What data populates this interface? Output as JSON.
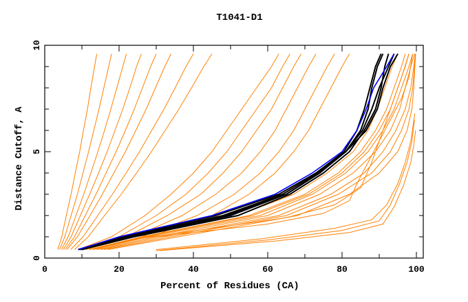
{
  "chart_data": {
    "type": "line",
    "title": "T1041-D1",
    "xlabel": "Percent of Residues (CA)",
    "ylabel": "Distance Cutoff, A",
    "xlim": [
      0,
      100
    ],
    "ylim": [
      0,
      10
    ],
    "x_ticks": [
      0,
      20,
      40,
      60,
      80,
      100
    ],
    "y_ticks": [
      0,
      5,
      10
    ],
    "grid": false,
    "legend": "none",
    "colors": {
      "other_models": "#ff8000",
      "highlight_black": "#000000",
      "highlight_blue": "#0000ff"
    },
    "y_levels": [
      0.4,
      1,
      2,
      3,
      4,
      5,
      6,
      7,
      8,
      9,
      9.6
    ],
    "series": [
      {
        "color": "#ff8000",
        "x": [
          3.5,
          4.6,
          5.8,
          7.1,
          8.2,
          9.4,
          10.4,
          11.5,
          12.4,
          13.4,
          14
        ]
      },
      {
        "color": "#ff8000",
        "x": [
          4,
          5.4,
          7.1,
          8.8,
          10.3,
          11.8,
          13.2,
          14.6,
          15.9,
          17.2,
          18
        ]
      },
      {
        "color": "#ff8000",
        "x": [
          4.5,
          6.3,
          8.4,
          10.5,
          12.4,
          14.3,
          16.1,
          17.8,
          19.4,
          21,
          22
        ]
      },
      {
        "color": "#ff8000",
        "x": [
          5,
          7.1,
          9.6,
          12.1,
          14.5,
          16.8,
          18.9,
          21,
          22.9,
          24.7,
          26
        ]
      },
      {
        "color": "#ff8000",
        "x": [
          5.5,
          8,
          10.9,
          13.8,
          16.5,
          19.2,
          21.7,
          24.1,
          26.3,
          28.5,
          30
        ]
      },
      {
        "color": "#ff8000",
        "x": [
          6,
          8.8,
          12.2,
          15.5,
          18.6,
          21.7,
          24.5,
          27.3,
          29.8,
          32.3,
          34
        ]
      },
      {
        "color": "#ff8000",
        "x": [
          7,
          10.3,
          14.3,
          18.2,
          21.9,
          25.5,
          28.8,
          32.1,
          35.1,
          38,
          40
        ]
      },
      {
        "color": "#ff8000",
        "x": [
          8,
          11.7,
          16.1,
          20.6,
          24.7,
          28.7,
          32.4,
          36.1,
          39.5,
          42.8,
          45
        ]
      },
      {
        "color": "#ff8000",
        "x": [
          10,
          22,
          33,
          42,
          48,
          53,
          57,
          61,
          64,
          67,
          69
        ]
      },
      {
        "color": "#ff8000",
        "x": [
          11,
          24,
          37,
          46,
          53,
          58,
          62,
          65,
          68,
          71,
          73
        ]
      },
      {
        "color": "#ff8000",
        "x": [
          12,
          26,
          41,
          51,
          58,
          63,
          67,
          70,
          73,
          76,
          78
        ]
      },
      {
        "color": "#ff8000",
        "x": [
          10,
          20,
          30,
          38,
          44,
          49,
          53,
          57,
          61,
          64,
          66
        ]
      },
      {
        "color": "#ff8000",
        "x": [
          12,
          28,
          45,
          55,
          62,
          67,
          71,
          74,
          77,
          80,
          82
        ]
      },
      {
        "color": "#ff8000",
        "x": [
          9,
          18,
          27,
          34,
          40,
          45,
          49,
          53,
          57,
          61,
          63
        ]
      },
      {
        "color": "#ff8000",
        "x": [
          11,
          24,
          52,
          67,
          76,
          83,
          87,
          89.5,
          91.5,
          93.5,
          95
        ]
      },
      {
        "color": "#ff8000",
        "x": [
          12,
          26,
          55,
          70,
          79,
          85,
          89,
          92,
          94,
          96,
          97
        ]
      },
      {
        "color": "#ff8000",
        "x": [
          13,
          28,
          58,
          72,
          81,
          87,
          91,
          94,
          96,
          98,
          99
        ]
      },
      {
        "color": "#ff8000",
        "x": [
          14,
          30,
          60,
          74,
          83,
          89,
          93,
          95.5,
          97,
          98.5,
          99.5
        ]
      },
      {
        "color": "#ff8000",
        "x": [
          15,
          32,
          63,
          77,
          86,
          91,
          94.5,
          97,
          98.5,
          99.3,
          99.7
        ]
      },
      {
        "color": "#ff8000",
        "x": [
          12,
          27,
          56,
          71,
          80,
          86,
          90,
          93,
          95,
          97,
          98
        ]
      },
      {
        "color": "#ff8000",
        "x": [
          16,
          34,
          65,
          79,
          88,
          93,
          96,
          98,
          99,
          99.5,
          99.8
        ]
      },
      {
        "color": "#ff8000",
        "x": [
          17,
          36,
          68,
          82,
          90,
          95,
          97.5,
          98.8,
          99.3,
          99.6,
          99.8
        ]
      },
      {
        "color": "#ff8000",
        "points": [
          [
            14,
            0.4
          ],
          [
            30,
            1
          ],
          [
            60,
            1.6
          ],
          [
            75,
            2.1
          ],
          [
            82,
            2.7
          ],
          [
            84,
            3.5
          ],
          [
            87,
            4.5
          ],
          [
            90,
            5.5
          ],
          [
            93,
            6.5
          ],
          [
            96,
            7.5
          ],
          [
            98,
            8.5
          ],
          [
            99,
            9.6
          ]
        ]
      },
      {
        "color": "#ff8000",
        "points": [
          [
            12,
            0.4
          ],
          [
            25,
            0.9
          ],
          [
            45,
            1.4
          ],
          [
            65,
            1.9
          ],
          [
            78,
            2.5
          ],
          [
            85,
            3.3
          ],
          [
            88,
            4.5
          ],
          [
            90,
            5.5
          ],
          [
            93,
            7
          ],
          [
            96,
            8.5
          ],
          [
            98,
            9.6
          ]
        ]
      },
      {
        "color": "#ff8000",
        "points": [
          [
            30,
            0.35
          ],
          [
            60,
            0.85
          ],
          [
            80,
            1.3
          ],
          [
            90,
            1.75
          ],
          [
            93,
            2.5
          ],
          [
            95.5,
            3.5
          ],
          [
            97.5,
            4.5
          ],
          [
            98.8,
            5.5
          ],
          [
            99.5,
            6.5
          ]
        ]
      },
      {
        "color": "#ff8000",
        "points": [
          [
            31,
            0.35
          ],
          [
            62,
            0.8
          ],
          [
            82,
            1.2
          ],
          [
            91,
            1.6
          ],
          [
            94,
            2.4
          ],
          [
            96.5,
            3.4
          ],
          [
            98.5,
            4.5
          ],
          [
            99.3,
            5.3
          ],
          [
            99.8,
            6
          ]
        ]
      },
      {
        "color": "#ff8000",
        "points": [
          [
            30,
            0.4
          ],
          [
            58,
            0.9
          ],
          [
            78,
            1.4
          ],
          [
            88,
            1.8
          ],
          [
            92,
            2.5
          ],
          [
            95,
            3.5
          ],
          [
            97,
            4.5
          ],
          [
            98.5,
            5.5
          ],
          [
            99.6,
            6.8
          ]
        ]
      },
      {
        "color": "#000000",
        "x": [
          9,
          21,
          46,
          63,
          73,
          80.5,
          84,
          86,
          87.5,
          89,
          90.5
        ]
      },
      {
        "color": "#000000",
        "x": [
          10,
          23,
          50,
          65,
          74,
          81,
          85,
          87,
          88,
          89.5,
          91
        ]
      },
      {
        "color": "#000000",
        "x": [
          9,
          22,
          48,
          64,
          73.5,
          81,
          85.5,
          88,
          90,
          92.5,
          94
        ]
      },
      {
        "color": "#000000",
        "x": [
          10,
          24,
          52,
          66,
          75,
          82,
          86,
          89,
          90.5,
          91.5,
          92.5
        ]
      },
      {
        "color": "#000000",
        "x": [
          9.5,
          22,
          49,
          65,
          74,
          81,
          86.5,
          89.5,
          91,
          93,
          95
        ]
      },
      {
        "color": "#0000ff",
        "x": [
          9,
          20,
          45,
          62,
          72,
          80,
          84,
          86.5,
          88.5,
          92,
          94
        ]
      }
    ]
  }
}
